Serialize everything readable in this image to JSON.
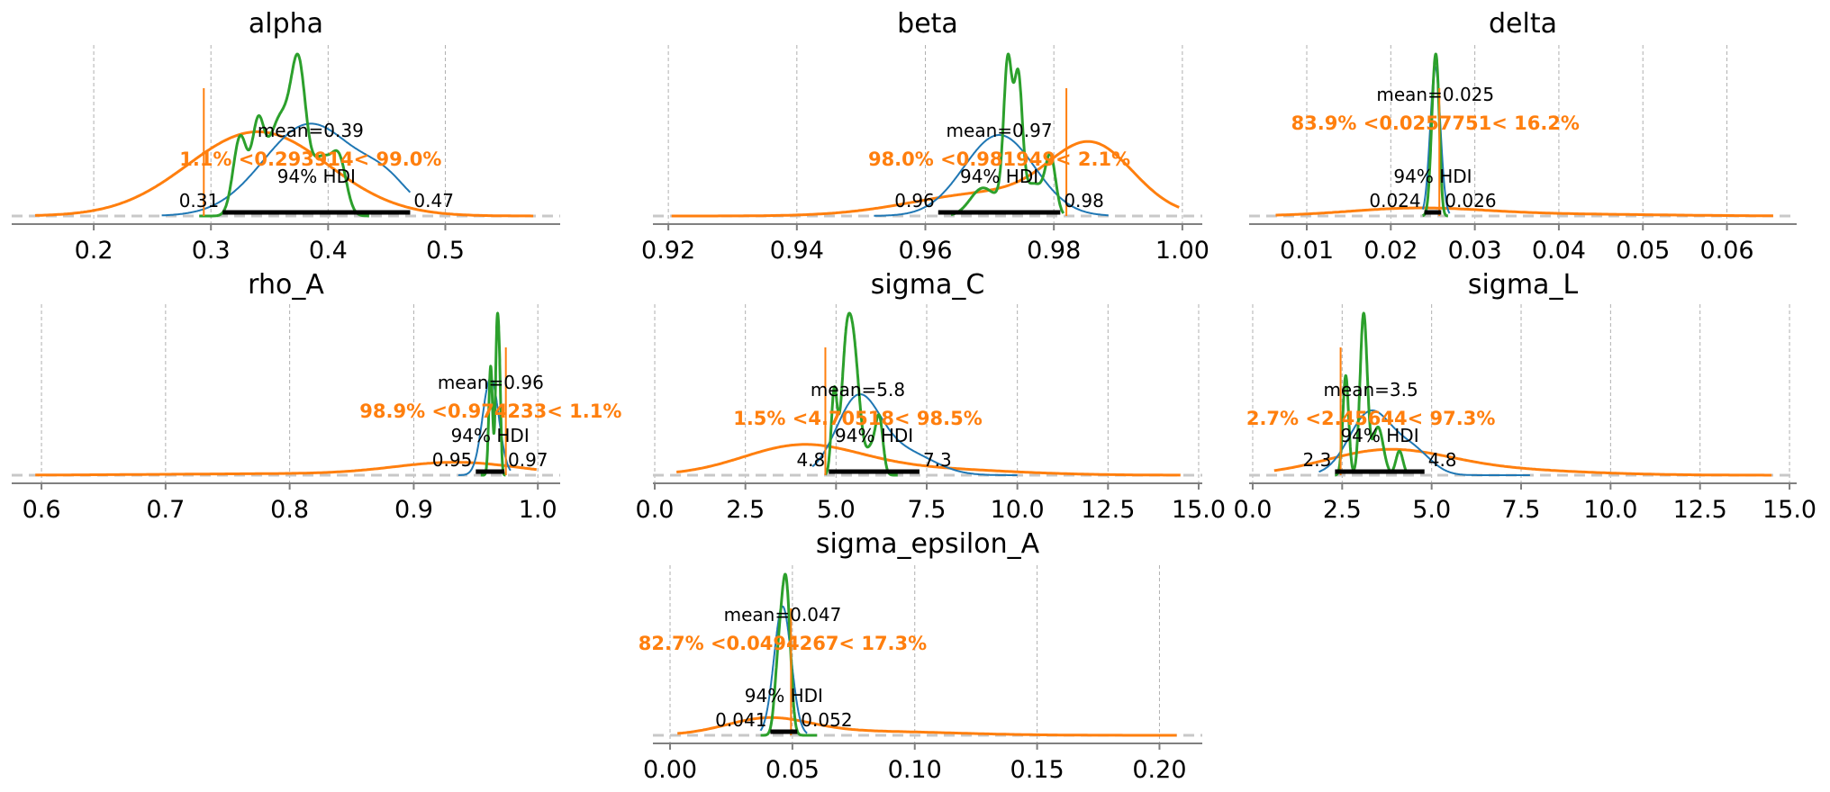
{
  "colors": {
    "posterior": "#1f77b4",
    "prior": "#ff7f0e",
    "chains": "#2ca02c",
    "hdi": "#000000",
    "ref_text": "#ff7f0e"
  },
  "chart_data": [
    {
      "type": "line",
      "title": "alpha",
      "xticks": [
        0.2,
        0.3,
        0.4,
        0.5
      ],
      "xtick_labels": [
        "0.2",
        "0.3",
        "0.4",
        "0.5"
      ],
      "xlim": [
        0.13,
        0.598
      ],
      "mean_label": "mean=0.39",
      "hdi_label": "94% HDI",
      "hdi": [
        0.31,
        0.47
      ],
      "hdi_low_label": "0.31",
      "hdi_high_label": "0.47",
      "ref_value": 0.293914,
      "ref_label": "1.1% <0.293914< 99.0%",
      "prior": {
        "range": [
          0.15,
          0.575
        ],
        "components": [
          [
            0.34,
            0.06,
            1.0
          ]
        ],
        "rel_height": 0.52
      },
      "posterior": {
        "range": [
          0.258,
          0.47
        ],
        "components": [
          [
            0.385,
            0.04,
            1.0
          ],
          [
            0.45,
            0.02,
            0.25
          ]
        ],
        "rel_height": 0.57
      },
      "chains": {
        "range": [
          0.29,
          0.435
        ],
        "components": [
          [
            0.325,
            0.006,
            0.55
          ],
          [
            0.34,
            0.005,
            0.5
          ],
          [
            0.36,
            0.012,
            0.7
          ],
          [
            0.375,
            0.006,
            0.75
          ],
          [
            0.395,
            0.01,
            0.4
          ],
          [
            0.41,
            0.006,
            0.3
          ]
        ],
        "rel_height": 1.0
      }
    },
    {
      "type": "line",
      "title": "beta",
      "xticks": [
        0.92,
        0.94,
        0.96,
        0.98,
        1.0
      ],
      "xtick_labels": [
        "0.92",
        "0.94",
        "0.96",
        "0.98",
        "1.00"
      ],
      "xlim": [
        0.9176,
        1.0031
      ],
      "mean_label": "mean=0.97",
      "hdi_label": "94% HDI",
      "hdi": [
        0.962,
        0.981
      ],
      "hdi_low_label": "0.96",
      "hdi_high_label": "0.98",
      "ref_value": 0.981949,
      "ref_label": "98.0% <0.981949< 2.1%",
      "prior": {
        "range": [
          0.9205,
          0.9995
        ],
        "components": [
          [
            0.986,
            0.0065,
            1.0
          ],
          [
            0.97,
            0.012,
            0.35
          ]
        ],
        "rel_height": 0.46
      },
      "posterior": {
        "range": [
          0.952,
          0.9885
        ],
        "components": [
          [
            0.9715,
            0.0055,
            1.0
          ]
        ],
        "rel_height": 0.5
      },
      "chains": {
        "range": [
          0.964,
          0.9815
        ],
        "components": [
          [
            0.9728,
            0.0006,
            0.95
          ],
          [
            0.9745,
            0.0006,
            0.85
          ],
          [
            0.9735,
            0.0012,
            0.5
          ],
          [
            0.9795,
            0.0008,
            0.48
          ],
          [
            0.969,
            0.002,
            0.25
          ],
          [
            0.977,
            0.0015,
            0.28
          ]
        ],
        "rel_height": 1.0
      }
    },
    {
      "type": "line",
      "title": "delta",
      "xticks": [
        0.01,
        0.02,
        0.03,
        0.04,
        0.05,
        0.06
      ],
      "xtick_labels": [
        "0.01",
        "0.02",
        "0.03",
        "0.04",
        "0.05",
        "0.06"
      ],
      "xlim": [
        0.00314,
        0.0683
      ],
      "mean_label": "mean=0.025",
      "hdi_label": "94% HDI",
      "hdi": [
        0.024,
        0.026
      ],
      "hdi_low_label": "0.024",
      "hdi_high_label": "0.026",
      "ref_value": 0.0257751,
      "ref_label": "83.9% <0.0257751< 16.2%",
      "prior": {
        "range": [
          0.0063,
          0.0655
        ],
        "components": [
          [
            0.023,
            0.008,
            1.0
          ],
          [
            0.04,
            0.012,
            0.25
          ]
        ],
        "rel_height": 0.05
      },
      "posterior": {
        "range": [
          0.0238,
          0.027
        ],
        "components": [
          [
            0.0253,
            0.0006,
            1.0
          ]
        ],
        "rel_height": 0.92
      },
      "chains": {
        "range": [
          0.0238,
          0.0268
        ],
        "components": [
          [
            0.0252,
            0.0004,
            1.0
          ],
          [
            0.0256,
            0.0003,
            0.45
          ]
        ],
        "rel_height": 1.0
      }
    },
    {
      "type": "line",
      "title": "rho_A",
      "xticks": [
        0.6,
        0.7,
        0.8,
        0.9,
        1.0
      ],
      "xtick_labels": [
        "0.6",
        "0.7",
        "0.8",
        "0.9",
        "1.0"
      ],
      "xlim": [
        0.576,
        1.018
      ],
      "mean_label": "mean=0.96",
      "hdi_label": "94% HDI",
      "hdi": [
        0.95,
        0.973
      ],
      "hdi_low_label": "0.95",
      "hdi_high_label": "0.97",
      "ref_value": 0.974233,
      "ref_label": "98.9% <0.974233< 1.1%",
      "prior": {
        "range": [
          0.595,
          0.999
        ],
        "components": [
          [
            0.935,
            0.05,
            1.0
          ],
          [
            0.8,
            0.1,
            0.12
          ]
        ],
        "rel_height": 0.08
      },
      "posterior": {
        "range": [
          0.936,
          0.978
        ],
        "components": [
          [
            0.962,
            0.0065,
            1.0
          ]
        ],
        "rel_height": 0.6
      },
      "chains": {
        "range": [
          0.954,
          0.974
        ],
        "components": [
          [
            0.962,
            0.0015,
            0.85
          ],
          [
            0.967,
            0.0012,
            1.0
          ],
          [
            0.969,
            0.0012,
            0.75
          ]
        ],
        "rel_height": 1.0
      }
    },
    {
      "type": "line",
      "title": "sigma_C",
      "xticks": [
        0.0,
        2.5,
        5.0,
        7.5,
        10.0,
        12.5,
        15.0
      ],
      "xtick_labels": [
        "0.0",
        "2.5",
        "5.0",
        "7.5",
        "10.0",
        "12.5",
        "15.0"
      ],
      "xlim": [
        -0.05,
        15.1
      ],
      "mean_label": "mean=5.8",
      "hdi_label": "94% HDI",
      "hdi": [
        4.8,
        7.3
      ],
      "hdi_low_label": "4.8",
      "hdi_high_label": "7.3",
      "ref_value": 4.70518,
      "ref_label": "1.5% <4.70518< 98.5%",
      "prior": {
        "range": [
          0.6,
          14.5
        ],
        "components": [
          [
            4.0,
            1.6,
            1.0
          ],
          [
            7.0,
            2.5,
            0.25
          ]
        ],
        "rel_height": 0.19
      },
      "posterior": {
        "range": [
          4.35,
          10.0
        ],
        "components": [
          [
            5.6,
            0.6,
            1.0
          ],
          [
            6.9,
            0.8,
            0.3
          ]
        ],
        "rel_height": 0.5
      },
      "chains": {
        "range": [
          4.7,
          6.7
        ],
        "components": [
          [
            4.95,
            0.08,
            0.6
          ],
          [
            5.45,
            0.18,
            1.0
          ],
          [
            5.25,
            0.12,
            0.45
          ],
          [
            6.2,
            0.1,
            0.35
          ],
          [
            6.0,
            0.15,
            0.2
          ]
        ],
        "rel_height": 1.0
      }
    },
    {
      "type": "line",
      "title": "sigma_L",
      "xticks": [
        0.0,
        2.5,
        5.0,
        7.5,
        10.0,
        12.5,
        15.0
      ],
      "xtick_labels": [
        "0.0",
        "2.5",
        "5.0",
        "7.5",
        "10.0",
        "12.5",
        "15.0"
      ],
      "xlim": [
        -0.1,
        15.2
      ],
      "mean_label": "mean=3.5",
      "hdi_label": "94% HDI",
      "hdi": [
        2.3,
        4.8
      ],
      "hdi_low_label": "2.3",
      "hdi_high_label": "4.8",
      "ref_value": 2.45644,
      "ref_label": "2.7% <2.45644< 97.3%",
      "prior": {
        "range": [
          0.6,
          14.5
        ],
        "components": [
          [
            3.7,
            1.7,
            1.0
          ],
          [
            6.5,
            2.5,
            0.25
          ]
        ],
        "rel_height": 0.16
      },
      "posterior": {
        "range": [
          1.85,
          7.75
        ],
        "components": [
          [
            3.3,
            0.6,
            1.0
          ],
          [
            4.5,
            0.5,
            0.35
          ]
        ],
        "rel_height": 0.4
      },
      "chains": {
        "range": [
          2.3,
          4.3
        ],
        "components": [
          [
            2.6,
            0.08,
            0.62
          ],
          [
            3.1,
            0.1,
            1.0
          ],
          [
            3.5,
            0.15,
            0.3
          ],
          [
            4.1,
            0.1,
            0.15
          ]
        ],
        "rel_height": 1.0
      }
    },
    {
      "type": "line",
      "title": "sigma_epsilon_A",
      "xticks": [
        0.0,
        0.05,
        0.1,
        0.15,
        0.2
      ],
      "xtick_labels": [
        "0.00",
        "0.05",
        "0.10",
        "0.15",
        "0.20"
      ],
      "xlim": [
        -0.007,
        0.2175
      ],
      "mean_label": "mean=0.047",
      "hdi_label": "94% HDI",
      "hdi": [
        0.041,
        0.052
      ],
      "hdi_low_label": "0.041",
      "hdi_high_label": "0.052",
      "ref_value": 0.0494267,
      "ref_label": "82.7% <0.0494267< 17.3%",
      "prior": {
        "range": [
          0.003,
          0.207
        ],
        "components": [
          [
            0.04,
            0.017,
            1.0
          ],
          [
            0.08,
            0.035,
            0.25
          ]
        ],
        "rel_height": 0.11
      },
      "posterior": {
        "range": [
          0.037,
          0.056
        ],
        "components": [
          [
            0.046,
            0.0035,
            1.0
          ]
        ],
        "rel_height": 0.8
      },
      "chains": {
        "range": [
          0.037,
          0.06
        ],
        "components": [
          [
            0.0465,
            0.0018,
            1.0
          ],
          [
            0.048,
            0.0016,
            0.8
          ],
          [
            0.044,
            0.0015,
            0.5
          ]
        ],
        "rel_height": 1.0
      }
    }
  ]
}
